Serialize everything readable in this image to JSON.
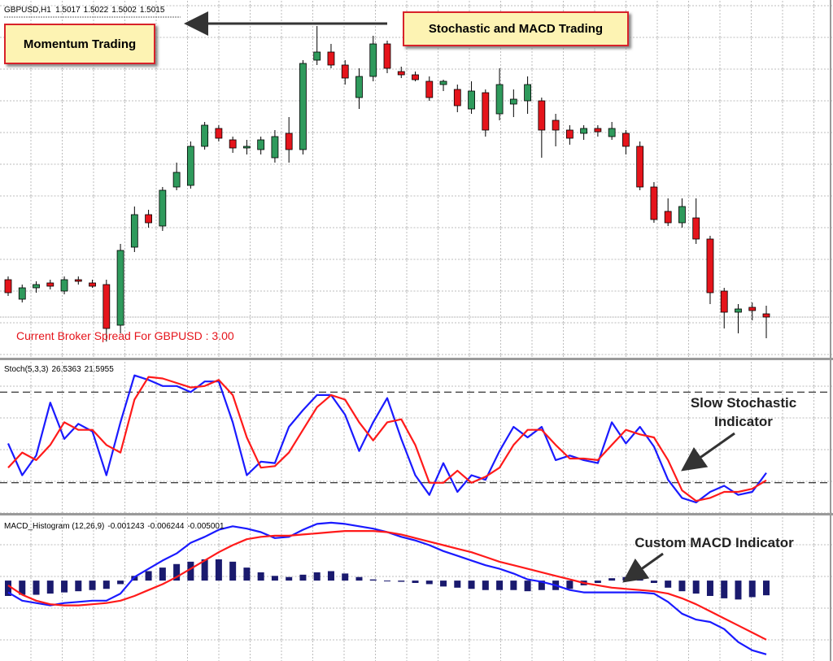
{
  "chart_data": [
    {
      "type": "candlestick",
      "title": "GBPUSD,H1",
      "open": [
        1.5038,
        1.5026,
        1.5033,
        1.5036,
        1.5031,
        1.5038,
        1.5036,
        1.5035,
        1.501,
        1.5058,
        1.5078,
        1.5071,
        1.5095,
        1.5096,
        1.512,
        1.5131,
        1.5124,
        1.5119,
        1.5118,
        1.5113,
        1.5128,
        1.5118,
        1.5173,
        1.5178,
        1.517,
        1.515,
        1.5163,
        1.5183,
        1.5166,
        1.5164,
        1.516,
        1.5158,
        1.5155,
        1.5143,
        1.5153,
        1.514,
        1.5146,
        1.5148,
        1.5148,
        1.5136,
        1.513,
        1.5128,
        1.5131,
        1.5126,
        1.5128,
        1.512,
        1.5095,
        1.508,
        1.5073,
        1.5076,
        1.5063,
        1.5031,
        1.5018,
        1.5021,
        1.5017
      ],
      "high": [
        1.504,
        1.5035,
        1.5037,
        1.5038,
        1.504,
        1.504,
        1.5038,
        1.5038,
        1.506,
        1.5083,
        1.5081,
        1.5095,
        1.511,
        1.5123,
        1.5135,
        1.5133,
        1.5126,
        1.5124,
        1.5126,
        1.513,
        1.5138,
        1.5173,
        1.5194,
        1.5183,
        1.5173,
        1.5168,
        1.5188,
        1.5185,
        1.5169,
        1.5166,
        1.5163,
        1.5161,
        1.5158,
        1.516,
        1.5155,
        1.5168,
        1.5155,
        1.5163,
        1.515,
        1.514,
        1.5133,
        1.5133,
        1.5133,
        1.5135,
        1.513,
        1.5123,
        1.5098,
        1.5088,
        1.5088,
        1.5088,
        1.5065,
        1.5033,
        1.5023,
        1.5024,
        1.5022
      ],
      "low": [
        1.5028,
        1.5024,
        1.503,
        1.5032,
        1.5029,
        1.5035,
        1.5033,
        1.5,
        1.5005,
        1.5055,
        1.507,
        1.5068,
        1.5093,
        1.5094,
        1.5118,
        1.5123,
        1.5116,
        1.5115,
        1.5115,
        1.511,
        1.511,
        1.5115,
        1.517,
        1.5168,
        1.5158,
        1.5143,
        1.516,
        1.5165,
        1.5162,
        1.516,
        1.5148,
        1.5154,
        1.5141,
        1.514,
        1.5126,
        1.5136,
        1.5138,
        1.514,
        1.5113,
        1.512,
        1.5121,
        1.5124,
        1.5126,
        1.5124,
        1.5115,
        1.5093,
        1.5073,
        1.5071,
        1.507,
        1.506,
        1.5023,
        1.5008,
        1.5005,
        1.5013,
        1.5002
      ],
      "close": [
        1.503,
        1.5033,
        1.5035,
        1.5034,
        1.5038,
        1.5037,
        1.5034,
        1.5008,
        1.5056,
        1.5078,
        1.5073,
        1.5093,
        1.5104,
        1.512,
        1.5133,
        1.5125,
        1.5119,
        1.512,
        1.5124,
        1.5126,
        1.5118,
        1.5171,
        1.5178,
        1.517,
        1.5162,
        1.5163,
        1.5183,
        1.5168,
        1.5164,
        1.5161,
        1.515,
        1.516,
        1.5145,
        1.5154,
        1.513,
        1.5158,
        1.5149,
        1.5158,
        1.513,
        1.513,
        1.5125,
        1.5131,
        1.5129,
        1.5131,
        1.512,
        1.5095,
        1.5075,
        1.5073,
        1.5083,
        1.5063,
        1.503,
        1.5018,
        1.502,
        1.5019,
        1.5015
      ],
      "up_color": "#2f9a5c",
      "down_color": "#e5141b",
      "ylim": [
        1.499,
        1.521
      ]
    },
    {
      "type": "line",
      "title": "Stoch(5,3,3)",
      "series": [
        {
          "color": "#1a1aff",
          "values": [
            46,
            25,
            38,
            73,
            49,
            59,
            54,
            25,
            60,
            91,
            88,
            84,
            84,
            80,
            87,
            87,
            60,
            25,
            34,
            33,
            57,
            68,
            78,
            78,
            65,
            41,
            60,
            76,
            49,
            25,
            12,
            33,
            14,
            25,
            22,
            41,
            57,
            50,
            57,
            35,
            38,
            35,
            33,
            60,
            46,
            57,
            44,
            22,
            10,
            7,
            14,
            18,
            12,
            14,
            26.5363
          ]
        },
        {
          "color": "#ff1a1a",
          "values": [
            30,
            40,
            35,
            45,
            60,
            55,
            55,
            45,
            40,
            75,
            90,
            89,
            86,
            83,
            84,
            88,
            78,
            50,
            30,
            31,
            40,
            55,
            70,
            78,
            75,
            60,
            48,
            60,
            62,
            45,
            20,
            20,
            28,
            20,
            24,
            30,
            45,
            55,
            55,
            45,
            36,
            36,
            35,
            45,
            55,
            52,
            50,
            35,
            15,
            8,
            10,
            14,
            14,
            16,
            21.5955
          ]
        }
      ],
      "levels": [
        20,
        80
      ],
      "ylim": [
        0,
        100
      ]
    },
    {
      "type": "macd",
      "title": "MACD_Histogram (12,26,9)",
      "histogram": {
        "color": "#1a1a6e",
        "values": [
          -0.0013,
          -0.0012,
          -0.0012,
          -0.0011,
          -0.001,
          -0.0009,
          -0.0008,
          -0.0007,
          -0.0003,
          0.0004,
          0.0008,
          0.0011,
          0.0014,
          0.0016,
          0.0018,
          0.0018,
          0.0016,
          0.0011,
          0.0007,
          0.0004,
          0.0003,
          0.0005,
          0.0007,
          0.0008,
          0.0006,
          0.0003,
          0.0001,
          0.0,
          -0.0001,
          -0.0002,
          -0.0003,
          -0.0005,
          -0.0006,
          -0.0007,
          -0.0008,
          -0.0008,
          -0.0008,
          -0.0009,
          -0.0008,
          -0.0008,
          -0.0007,
          -0.0004,
          -0.0002,
          0.0002,
          0.0003,
          0.0002,
          -0.0002,
          -0.0006,
          -0.0009,
          -0.0011,
          -0.0013,
          -0.0015,
          -0.0016,
          -0.0014,
          -0.001243
        ]
      },
      "series": [
        {
          "color": "#1a1aff",
          "values": [
            -0.001,
            -0.0017,
            -0.0019,
            -0.0021,
            -0.0019,
            -0.0018,
            -0.0017,
            -0.0017,
            -0.0011,
            0.0003,
            0.001,
            0.0017,
            0.0023,
            0.0032,
            0.0037,
            0.0043,
            0.0046,
            0.0044,
            0.0041,
            0.0036,
            0.0037,
            0.0043,
            0.0048,
            0.0049,
            0.0048,
            0.0046,
            0.0044,
            0.0041,
            0.0037,
            0.0034,
            0.003,
            0.0025,
            0.0021,
            0.0017,
            0.0013,
            0.001,
            0.0006,
            0.0001,
            -0.0001,
            -0.0004,
            -0.0008,
            -0.001,
            -0.001,
            -0.001,
            -0.001,
            -0.001,
            -0.0011,
            -0.0018,
            -0.0028,
            -0.0033,
            -0.0035,
            -0.0041,
            -0.0052,
            -0.0059,
            -0.006244
          ]
        },
        {
          "color": "#ff1a1a",
          "values": [
            -0.0004,
            -0.0012,
            -0.0017,
            -0.002,
            -0.0021,
            -0.0021,
            -0.002,
            -0.0019,
            -0.0017,
            -0.0013,
            -0.0008,
            -0.0003,
            0.0003,
            0.001,
            0.0017,
            0.0024,
            0.003,
            0.0035,
            0.0037,
            0.0038,
            0.0038,
            0.0039,
            0.004,
            0.0041,
            0.0042,
            0.0042,
            0.0042,
            0.0041,
            0.0039,
            0.0036,
            0.0033,
            0.003,
            0.0027,
            0.0024,
            0.002,
            0.0016,
            0.0013,
            0.001,
            0.0007,
            0.0004,
            0.0001,
            -0.0002,
            -0.0004,
            -0.0006,
            -0.0007,
            -0.0008,
            -0.0009,
            -0.0011,
            -0.0015,
            -0.002,
            -0.0026,
            -0.0032,
            -0.0038,
            -0.0044,
            -0.005001
          ]
        }
      ],
      "ylim": [
        -0.0066,
        0.0051
      ]
    }
  ],
  "annotations": {
    "momentum": "Momentum Trading",
    "strategy": "Stochastic and MACD Trading",
    "spread": "Current Broker Spread For GBPUSD : 3.00",
    "stochastic": [
      "Slow Stochastic",
      "Indicator"
    ],
    "macd": "Custom MACD Indicator"
  }
}
